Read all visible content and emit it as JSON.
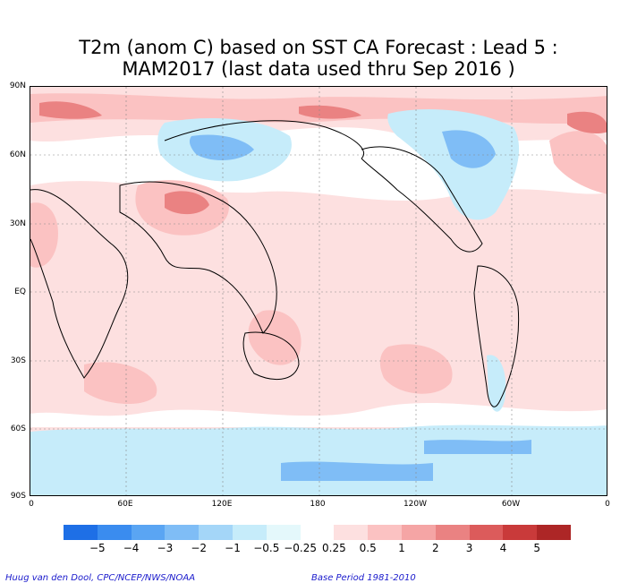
{
  "title_line1": "T2m (anom C) based on SST CA Forecast : Lead 5 :",
  "title_line2": "MAM2017 (last data used thru Sep 2016 )",
  "lat_labels": [
    "90N",
    "60N",
    "30N",
    "EQ",
    "30S",
    "60S",
    "90S"
  ],
  "lon_labels": [
    "0",
    "60E",
    "120E",
    "180",
    "120W",
    "60W",
    "0"
  ],
  "colorbar": {
    "labels": [
      "−5",
      "−4",
      "−3",
      "−2",
      "−1",
      "−0.5",
      "−0.25",
      "0.25",
      "0.5",
      "1",
      "2",
      "3",
      "4",
      "5"
    ],
    "colors": [
      "#1e6fe6",
      "#3a8cef",
      "#5aa5f3",
      "#7fbdf6",
      "#a4d6f8",
      "#c6ecfa",
      "#e4f8fb",
      "#ffffff",
      "#fde0e0",
      "#fbc2c2",
      "#f5a5a5",
      "#ea8282",
      "#dc5b5b",
      "#c93a3a",
      "#ad2626"
    ]
  },
  "footer_left": "Huug van den Dool, CPC/NCEP/NWS/NOAA",
  "footer_right": "Base Period 1981-2010"
}
